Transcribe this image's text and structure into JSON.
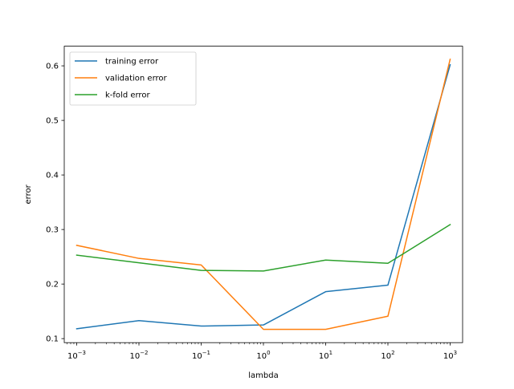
{
  "chart_data": {
    "type": "line",
    "xscale": "log",
    "x": [
      0.001,
      0.01,
      0.1,
      1,
      10,
      100,
      1000
    ],
    "xticks": [
      0.001,
      0.01,
      0.1,
      1,
      10,
      100,
      1000
    ],
    "xtick_labels": [
      {
        "base": "10",
        "exp": "−3"
      },
      {
        "base": "10",
        "exp": "−2"
      },
      {
        "base": "10",
        "exp": "−1"
      },
      {
        "base": "10",
        "exp": "0"
      },
      {
        "base": "10",
        "exp": "1"
      },
      {
        "base": "10",
        "exp": "2"
      },
      {
        "base": "10",
        "exp": "3"
      }
    ],
    "yticks": [
      0.1,
      0.2,
      0.3,
      0.4,
      0.5,
      0.6
    ],
    "ytick_labels": [
      "0.1",
      "0.2",
      "0.3",
      "0.4",
      "0.5",
      "0.6"
    ],
    "xlim": [
      0.000631,
      1585
    ],
    "ylim": [
      0.0926,
      0.636
    ],
    "xlabel": "lambda",
    "ylabel": "error",
    "grid": false,
    "legend_position": "top-left",
    "series": [
      {
        "name": "training error",
        "color": "#1f77b4",
        "values": [
          0.118,
          0.133,
          0.123,
          0.125,
          0.186,
          0.198,
          0.602
        ]
      },
      {
        "name": "validation error",
        "color": "#ff7f0e",
        "values": [
          0.271,
          0.247,
          0.235,
          0.117,
          0.117,
          0.141,
          0.612
        ]
      },
      {
        "name": "k-fold error",
        "color": "#2ca02c",
        "values": [
          0.253,
          0.239,
          0.225,
          0.224,
          0.244,
          0.238,
          0.309
        ]
      }
    ]
  }
}
